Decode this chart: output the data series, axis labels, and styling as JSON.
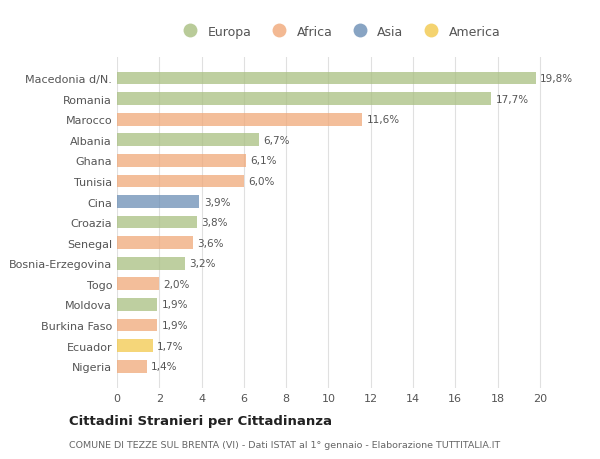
{
  "categories": [
    "Nigeria",
    "Ecuador",
    "Burkina Faso",
    "Moldova",
    "Togo",
    "Bosnia-Erzegovina",
    "Senegal",
    "Croazia",
    "Cina",
    "Tunisia",
    "Ghana",
    "Albania",
    "Marocco",
    "Romania",
    "Macedonia d/N."
  ],
  "values": [
    1.4,
    1.7,
    1.9,
    1.9,
    2.0,
    3.2,
    3.6,
    3.8,
    3.9,
    6.0,
    6.1,
    6.7,
    11.6,
    17.7,
    19.8
  ],
  "colors": [
    "#F0A878",
    "#F2C94C",
    "#F0A878",
    "#A8BF80",
    "#F0A878",
    "#A8BF80",
    "#F0A878",
    "#A8BF80",
    "#6B8EB5",
    "#F0A878",
    "#F0A878",
    "#A8BF80",
    "#F0A878",
    "#A8BF80",
    "#A8BF80"
  ],
  "legend_labels": [
    "Europa",
    "Africa",
    "Asia",
    "America"
  ],
  "legend_colors": [
    "#A8BF80",
    "#F0A878",
    "#6B8EB5",
    "#F2C94C"
  ],
  "title": "Cittadini Stranieri per Cittadinanza",
  "subtitle": "COMUNE DI TEZZE SUL BRENTA (VI) - Dati ISTAT al 1° gennaio - Elaborazione TUTTITALIA.IT",
  "xlim": [
    0,
    21
  ],
  "xticks": [
    0,
    2,
    4,
    6,
    8,
    10,
    12,
    14,
    16,
    18,
    20
  ],
  "background_color": "#ffffff",
  "grid_color": "#e0e0e0",
  "bar_alpha": 0.75
}
